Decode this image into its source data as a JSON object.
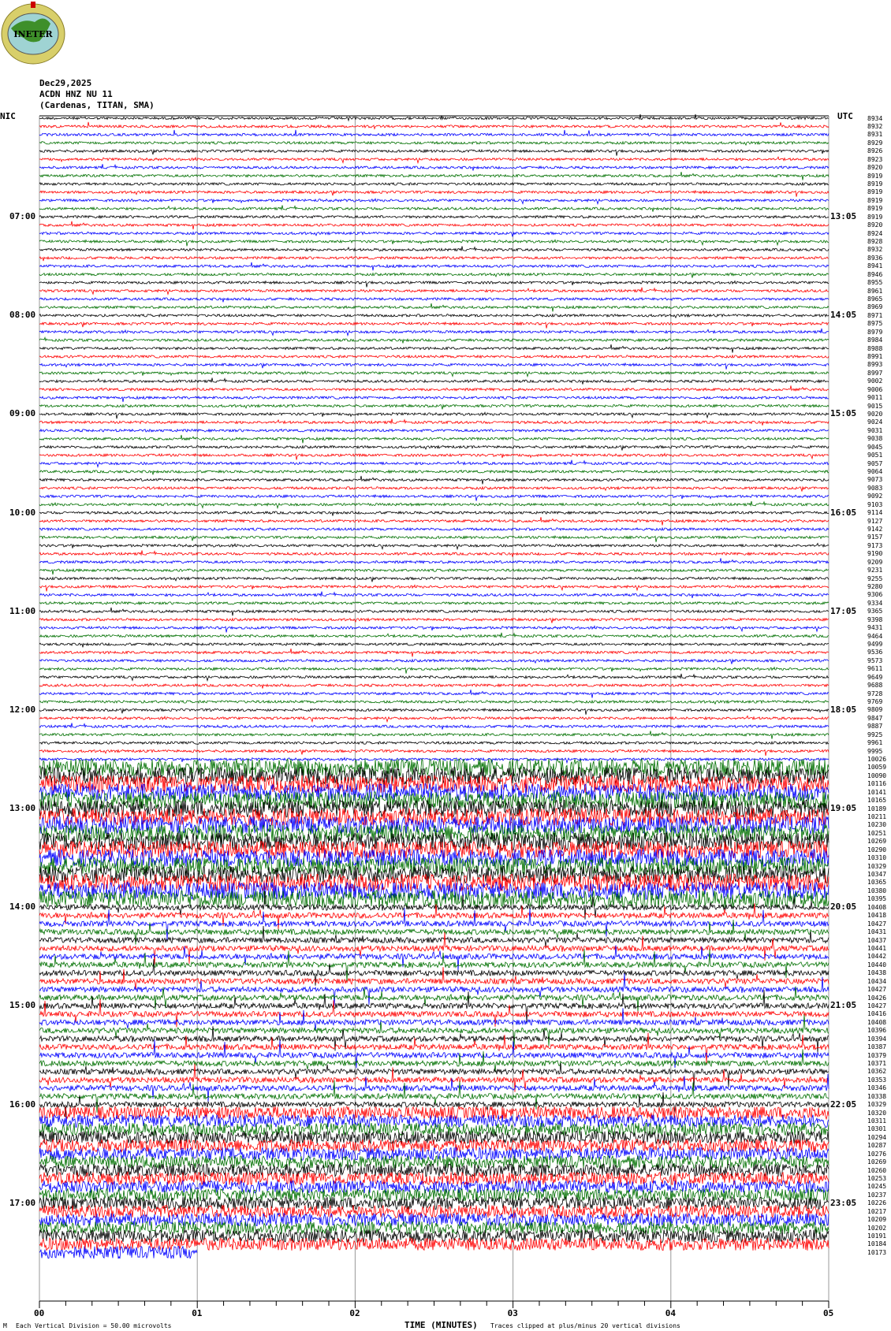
{
  "logo": {
    "text": "INETER"
  },
  "header": {
    "date": "Dec29,2025",
    "station": "ACDN HNZ NU 11",
    "location": "(Cardenas, TITAN, SMA)"
  },
  "chart_data": {
    "type": "line",
    "subtype": "helicorder",
    "xlabel": "TIME (MINUTES)",
    "x_ticks": [
      "00",
      "01",
      "02",
      "03",
      "04",
      "05"
    ],
    "xlim": [
      0,
      5
    ],
    "minor_tick_seconds": 10,
    "grid": "vertical lines every minute",
    "left_timezone": "NIC",
    "right_timezone": "UTC",
    "left_hour_labels": [
      "07:00",
      "08:00",
      "09:00",
      "10:00",
      "11:00",
      "12:00",
      "13:00",
      "14:00",
      "15:00",
      "16:00",
      "17:00"
    ],
    "right_hour_labels": [
      "13:05",
      "14:05",
      "15:05",
      "16:05",
      "17:05",
      "18:05",
      "19:05",
      "20:05",
      "21:05",
      "22:05",
      "23:05"
    ],
    "rows_per_hour": 12,
    "trace_color_cycle": [
      "#000000",
      "#ff0000",
      "#0000ff",
      "#007000"
    ],
    "last_row_minutes": 1,
    "row_values": [
      "8934",
      "8932",
      "8931",
      "8929",
      "8926",
      "8923",
      "8920",
      "8919",
      "8919",
      "8919",
      "8919",
      "8919",
      "8919",
      "8920",
      "8924",
      "8928",
      "8932",
      "8936",
      "8941",
      "8946",
      "8955",
      "8961",
      "8965",
      "8969",
      "8971",
      "8975",
      "8979",
      "8984",
      "8988",
      "8991",
      "8993",
      "8997",
      "9002",
      "9006",
      "9011",
      "9015",
      "9020",
      "9024",
      "9031",
      "9038",
      "9045",
      "9051",
      "9057",
      "9064",
      "9073",
      "9083",
      "9092",
      "9103",
      "9114",
      "9127",
      "9142",
      "9157",
      "9173",
      "9190",
      "9209",
      "9231",
      "9255",
      "9280",
      "9306",
      "9334",
      "9365",
      "9398",
      "9431",
      "9464",
      "9499",
      "9536",
      "9573",
      "9611",
      "9649",
      "9688",
      "9728",
      "9769",
      "9809",
      "9847",
      "9887",
      "9925",
      "9961",
      "9995",
      "10026",
      "10059",
      "10090",
      "10116",
      "10141",
      "10165",
      "10189",
      "10211",
      "10230",
      "10251",
      "10269",
      "10290",
      "10310",
      "10329",
      "10347",
      "10365",
      "10380",
      "10395",
      "10408",
      "10418",
      "10427",
      "10431",
      "10437",
      "10441",
      "10442",
      "10440",
      "10438",
      "10434",
      "10427",
      "10426",
      "10427",
      "10416",
      "10408",
      "10396",
      "10394",
      "10387",
      "10379",
      "10371",
      "10362",
      "10353",
      "10346",
      "10338",
      "10329",
      "10320",
      "10311",
      "10301",
      "10294",
      "10287",
      "10276",
      "10269",
      "10260",
      "10253",
      "10245",
      "10237",
      "10226",
      "10217",
      "10209",
      "10202",
      "10191",
      "10184",
      "10173"
    ],
    "activity_level": [
      1,
      1,
      1,
      1,
      1,
      1,
      1,
      1,
      1,
      1,
      1,
      1,
      1,
      1,
      1,
      1,
      1,
      1,
      1,
      1,
      1,
      1,
      1,
      1,
      1,
      1,
      1,
      1,
      1,
      1,
      1,
      1,
      1,
      1,
      1,
      1,
      1,
      1,
      1,
      1,
      1,
      1,
      1,
      1,
      1,
      1,
      1,
      1,
      1,
      1,
      1,
      1,
      1,
      1,
      1,
      1,
      1,
      1,
      1,
      1,
      1,
      1,
      1,
      1,
      1,
      1,
      1,
      1,
      1,
      1,
      1,
      1,
      1,
      1,
      1,
      1,
      1,
      1,
      1,
      6,
      6,
      6,
      6,
      6,
      6,
      6,
      6,
      6,
      6,
      6,
      6,
      6,
      6,
      6,
      6,
      6,
      3,
      3,
      3,
      3,
      3,
      3,
      3,
      3,
      3,
      3,
      3,
      3,
      3,
      3,
      3,
      3,
      3,
      3,
      3,
      3,
      3,
      3,
      3,
      3,
      3,
      5,
      5,
      5,
      5,
      5,
      5,
      5,
      5,
      5,
      5,
      5,
      5,
      5,
      5,
      5,
      5,
      5,
      5
    ],
    "vertical_division": "50.00 microvolts",
    "clip_divisions": 20
  },
  "footer": {
    "scale_note": "Each Vertical Division =    50.00 microvolts",
    "time_label": "TIME (MINUTES)",
    "clip_note": "Traces clipped at plus/minus 20 vertical divisions",
    "corner_mark": "M"
  }
}
